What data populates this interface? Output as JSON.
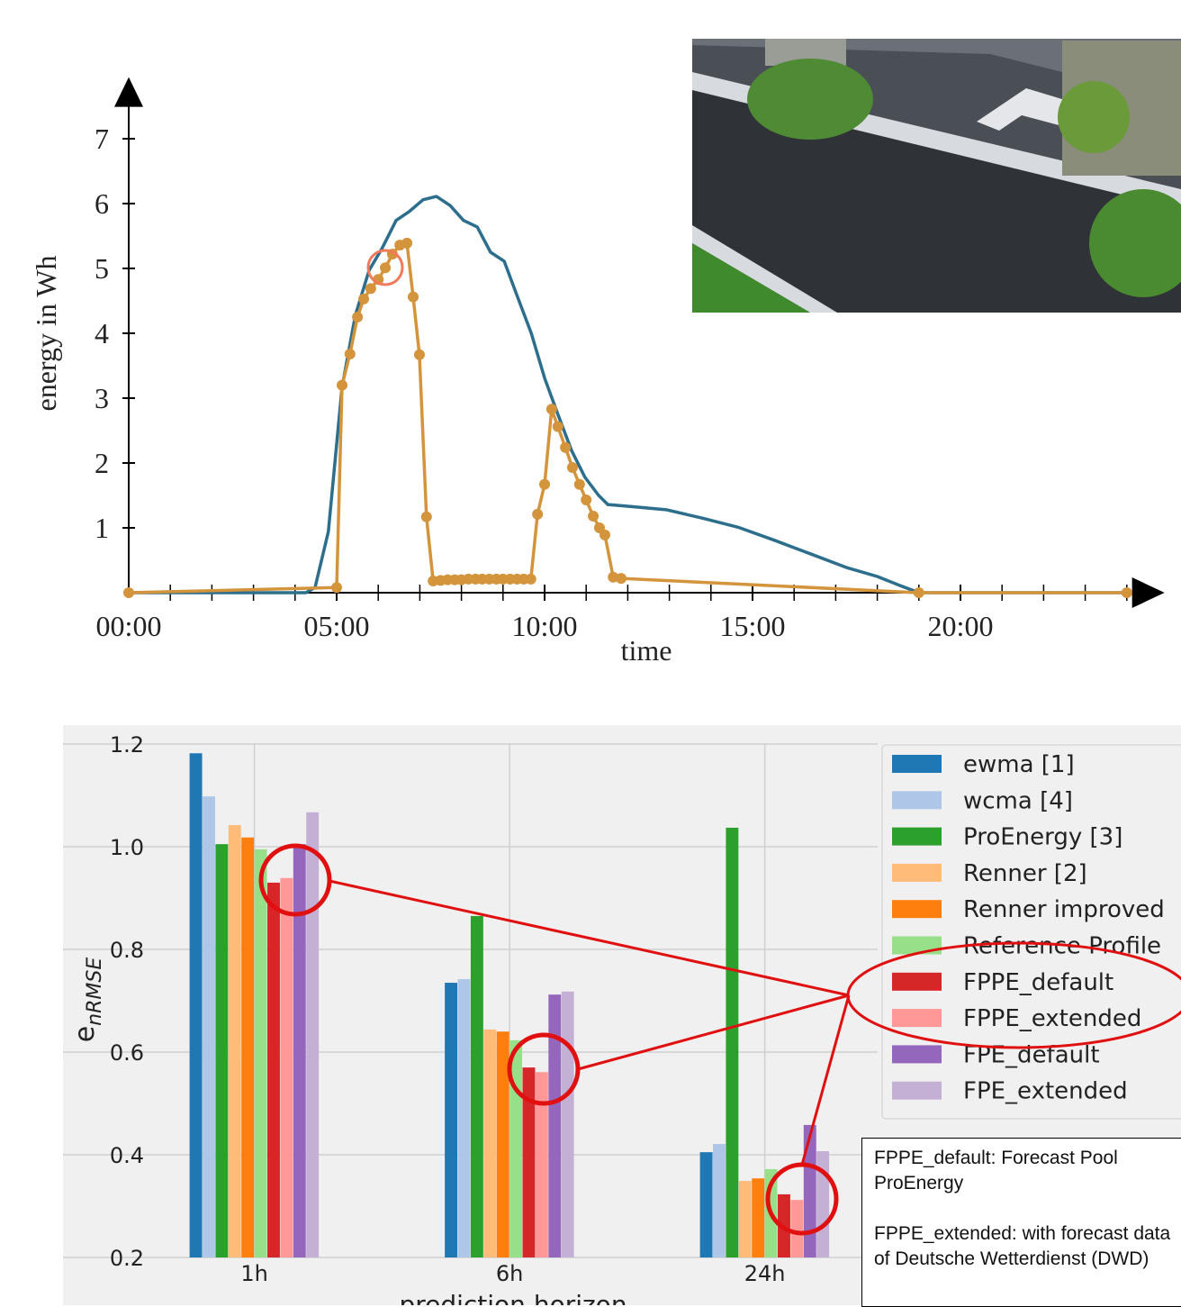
{
  "chart_data": [
    {
      "type": "line",
      "xlabel": "time",
      "ylabel": "energy in Wh",
      "xlim": [
        0,
        24.3
      ],
      "ylim": [
        0,
        7.95
      ],
      "xticks": [
        {
          "value": 0,
          "label": "00:00"
        },
        {
          "value": 5,
          "label": "05:00"
        },
        {
          "value": 10,
          "label": "10:00"
        },
        {
          "value": 15,
          "label": "15:00"
        },
        {
          "value": 20,
          "label": "20:00"
        }
      ],
      "xminor_ticks": [
        1,
        2,
        3,
        4,
        6,
        7,
        8,
        9,
        11,
        12,
        13,
        14,
        16,
        17,
        18,
        19,
        21,
        22,
        23,
        24
      ],
      "yticks": [
        1,
        2,
        3,
        4,
        5,
        6,
        7
      ],
      "series": [
        {
          "color": "#2c6e8c",
          "markers": false,
          "x": [
            0,
            4.26,
            4.48,
            4.8,
            5.13,
            5.45,
            5.78,
            6.1,
            6.43,
            6.75,
            7.08,
            7.4,
            7.73,
            8.05,
            8.38,
            8.7,
            9.03,
            9.35,
            9.68,
            10.0,
            10.32,
            10.65,
            10.97,
            11.3,
            11.52,
            12.06,
            12.92,
            13.79,
            14.65,
            15.52,
            16.39,
            17.25,
            18.0,
            18.55,
            19.0,
            24.0
          ],
          "values": [
            0,
            0,
            0.08,
            0.94,
            3.17,
            4.28,
            4.97,
            5.32,
            5.74,
            5.88,
            6.06,
            6.11,
            5.97,
            5.74,
            5.64,
            5.25,
            5.11,
            4.56,
            4.0,
            3.31,
            2.75,
            2.19,
            1.78,
            1.5,
            1.36,
            1.33,
            1.28,
            1.15,
            1.01,
            0.81,
            0.6,
            0.39,
            0.25,
            0.11,
            0,
            0
          ]
        },
        {
          "color": "#d4943c",
          "markers": true,
          "x": [
            0,
            5.0,
            5.13,
            5.32,
            5.5,
            5.65,
            5.82,
            6.0,
            6.17,
            6.34,
            6.52,
            6.69,
            6.84,
            6.99,
            7.16,
            7.32,
            7.5,
            7.67,
            7.84,
            8.0,
            8.17,
            8.34,
            8.5,
            8.67,
            8.84,
            9.0,
            9.17,
            9.34,
            9.5,
            9.67,
            9.83,
            10.0,
            10.17,
            10.32,
            10.5,
            10.67,
            10.84,
            11.0,
            11.17,
            11.32,
            11.45,
            11.65,
            11.84,
            19.0,
            24.0
          ],
          "values": [
            0,
            0.08,
            3.2,
            3.68,
            4.25,
            4.53,
            4.69,
            4.83,
            5.01,
            5.22,
            5.36,
            5.39,
            4.56,
            3.67,
            1.17,
            0.18,
            0.19,
            0.2,
            0.2,
            0.2,
            0.21,
            0.21,
            0.21,
            0.21,
            0.21,
            0.21,
            0.21,
            0.21,
            0.21,
            0.21,
            1.21,
            1.67,
            2.83,
            2.56,
            2.24,
            1.93,
            1.67,
            1.43,
            1.18,
            1.0,
            0.89,
            0.24,
            0.22,
            0,
            0
          ]
        }
      ]
    },
    {
      "type": "bar",
      "xlabel": "prediction horizon",
      "ylabel": "e",
      "ylabel_subscript": "nRMSE",
      "categories": [
        "1h",
        "6h",
        "24h"
      ],
      "ylim": [
        0.2,
        1.237
      ],
      "yticks": [
        0.2,
        0.4,
        0.6,
        0.8,
        {
          "value": 1.0,
          "label": "1.0"
        },
        1.2
      ],
      "grid": true,
      "legend": "upper right",
      "series": [
        {
          "name": "ewma [1]",
          "color": "#1f77b4",
          "values": [
            1.182,
            0.735,
            0.405
          ]
        },
        {
          "name": "wcma [4]",
          "color": "#aec7e8",
          "values": [
            1.098,
            0.742,
            0.421
          ]
        },
        {
          "name": "ProEnergy [3]",
          "color": "#2ca02c",
          "values": [
            1.005,
            0.865,
            1.037
          ]
        },
        {
          "name": "Renner [2]",
          "color": "#ffbb78",
          "values": [
            1.042,
            0.644,
            0.349
          ]
        },
        {
          "name": "Renner improved",
          "color": "#ff7f0e",
          "values": [
            1.018,
            0.64,
            0.354
          ]
        },
        {
          "name": "Reference Profile",
          "color": "#98df8a",
          "values": [
            0.995,
            0.623,
            0.372
          ]
        },
        {
          "name": "FPPE_default",
          "color": "#d62728",
          "values": [
            0.93,
            0.57,
            0.323
          ]
        },
        {
          "name": "FPPE_extended",
          "color": "#ff9896",
          "values": [
            0.939,
            0.561,
            0.312
          ]
        },
        {
          "name": "FPE_default",
          "color": "#9467bd",
          "values": [
            1.005,
            0.712,
            0.458
          ]
        },
        {
          "name": "FPE_extended",
          "color": "#c5b0d5",
          "values": [
            1.067,
            0.718,
            0.407
          ]
        }
      ]
    }
  ],
  "note": [
    "FPPE_default: Forecast Pool ProEnergy",
    "FPPE_extended: with forecast data of Deutsche Wetterdienst (DWD)"
  ]
}
